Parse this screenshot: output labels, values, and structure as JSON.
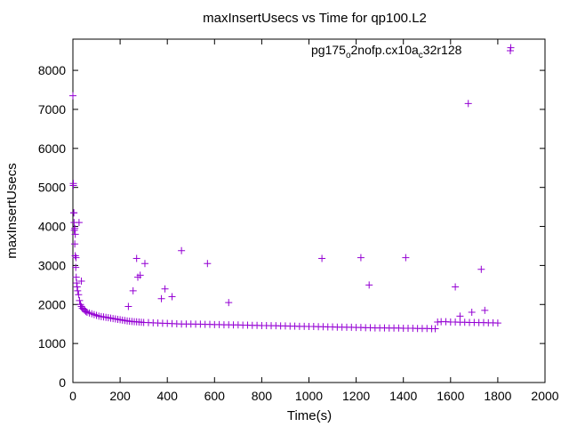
{
  "chart_data": {
    "type": "scatter",
    "title": "maxInsertUsecs vs Time for qp100.L2",
    "xlabel": "Time(s)",
    "ylabel": "maxInsertUsecs",
    "xlim": [
      0,
      2000
    ],
    "ylim": [
      0,
      8800
    ],
    "xticks": [
      "0",
      "200",
      "400",
      "600",
      "800",
      "1000",
      "1200",
      "1400",
      "1600",
      "1800",
      "2000"
    ],
    "yticks": [
      "0",
      "1000",
      "2000",
      "3000",
      "4000",
      "5000",
      "6000",
      "7000",
      "8000"
    ],
    "grid": false,
    "legend": "top-right",
    "marker": "+",
    "color": "#9400d3",
    "series": [
      {
        "name": "pg175_o2nofp.cx10a_c32r128",
        "name_parts": {
          "a": "pg175",
          "s1": "o",
          "b": "2nofp.cx10a",
          "s2": "c",
          "c": "32r128"
        },
        "x": [
          0,
          2,
          4,
          6,
          8,
          10,
          12,
          14,
          16,
          18,
          20,
          24,
          28,
          32,
          36,
          40,
          45,
          50,
          55,
          60,
          70,
          80,
          90,
          100,
          110,
          120,
          130,
          140,
          150,
          160,
          170,
          180,
          190,
          200,
          210,
          220,
          230,
          240,
          250,
          260,
          270,
          280,
          290,
          300,
          320,
          340,
          360,
          380,
          400,
          420,
          440,
          460,
          480,
          500,
          520,
          540,
          560,
          580,
          600,
          620,
          640,
          660,
          680,
          700,
          720,
          740,
          760,
          780,
          800,
          820,
          840,
          860,
          880,
          900,
          920,
          940,
          960,
          980,
          1000,
          1020,
          1040,
          1060,
          1080,
          1100,
          1120,
          1140,
          1160,
          1180,
          1200,
          1220,
          1240,
          1260,
          1280,
          1300,
          1320,
          1340,
          1360,
          1380,
          1400,
          1420,
          1440,
          1460,
          1480,
          1500,
          1520,
          1535,
          1545,
          1560,
          1580,
          1600,
          1620,
          1640,
          1660,
          1680,
          1700,
          1720,
          1740,
          1760,
          1780,
          1800,
          2,
          4,
          5,
          8,
          10,
          13,
          26,
          36,
          235,
          255,
          270,
          275,
          285,
          305,
          375,
          390,
          420,
          460,
          570,
          660,
          1055,
          1220,
          1255,
          1410,
          1620,
          1640,
          1675,
          1690,
          1730,
          1745,
          1855
        ],
        "y": [
          7350,
          5100,
          4350,
          3900,
          3550,
          3250,
          2950,
          2700,
          2550,
          2450,
          2350,
          2250,
          2100,
          2000,
          1950,
          1900,
          1880,
          1850,
          1820,
          1800,
          1780,
          1760,
          1740,
          1720,
          1700,
          1690,
          1680,
          1670,
          1660,
          1650,
          1640,
          1630,
          1620,
          1610,
          1600,
          1590,
          1580,
          1570,
          1565,
          1560,
          1555,
          1550,
          1545,
          1540,
          1535,
          1530,
          1525,
          1520,
          1515,
          1510,
          1505,
          1500,
          1500,
          1500,
          1495,
          1495,
          1490,
          1490,
          1485,
          1485,
          1480,
          1480,
          1475,
          1475,
          1470,
          1470,
          1465,
          1465,
          1460,
          1460,
          1455,
          1455,
          1450,
          1450,
          1445,
          1445,
          1440,
          1440,
          1435,
          1435,
          1430,
          1430,
          1425,
          1425,
          1420,
          1420,
          1415,
          1415,
          1410,
          1410,
          1405,
          1405,
          1400,
          1400,
          1400,
          1395,
          1395,
          1395,
          1390,
          1390,
          1390,
          1385,
          1385,
          1385,
          1380,
          1380,
          1550,
          1560,
          1560,
          1550,
          1550,
          1545,
          1545,
          1540,
          1540,
          1535,
          1535,
          1530,
          1530,
          1525,
          5050,
          4350,
          4100,
          3950,
          3800,
          3200,
          4100,
          2600,
          1950,
          2350,
          3180,
          2700,
          2750,
          3050,
          2150,
          2400,
          2200,
          3380,
          3050,
          2050,
          3180,
          3200,
          2500,
          3200,
          2450,
          1700,
          7150,
          1800,
          2900,
          1850,
          8580
        ]
      }
    ]
  }
}
